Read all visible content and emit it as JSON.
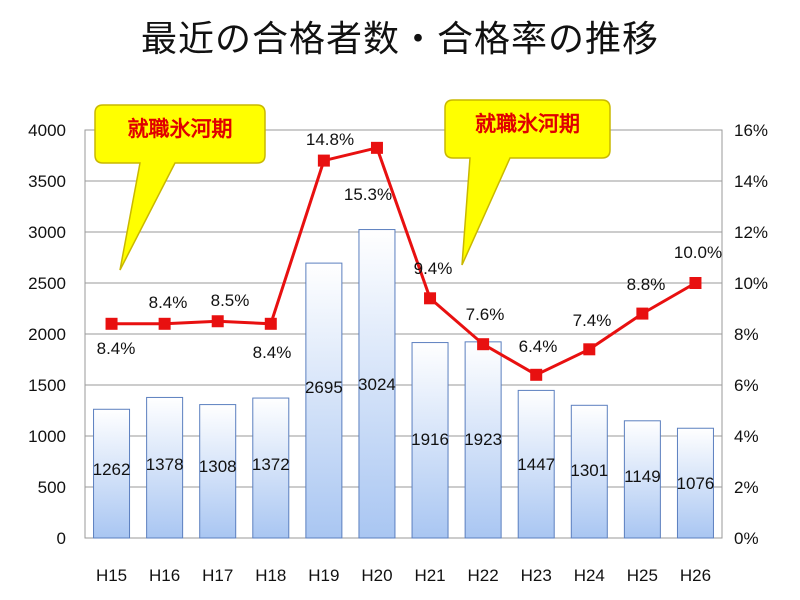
{
  "title": "最近の合格者数・合格率の推移",
  "chart_data": {
    "type": "bar+line",
    "categories": [
      "H15",
      "H16",
      "H17",
      "H18",
      "H19",
      "H20",
      "H21",
      "H22",
      "H23",
      "H24",
      "H25",
      "H26"
    ],
    "bar_series": {
      "values": [
        1262,
        1378,
        1308,
        1372,
        2695,
        3024,
        1916,
        1923,
        1447,
        1301,
        1149,
        1076
      ],
      "color": "#a9c6f2"
    },
    "line_series": {
      "values": [
        8.4,
        8.4,
        8.5,
        8.4,
        14.8,
        15.3,
        9.4,
        7.6,
        6.4,
        7.4,
        8.8,
        10.0
      ],
      "color": "#e81010"
    },
    "rate_labels": [
      "8.4%",
      "8.4%",
      "8.5%",
      "8.4%",
      "14.8%",
      "15.3%",
      "9.4%",
      "7.6%",
      "6.4%",
      "7.4%",
      "8.8%",
      "10.0%"
    ],
    "y_left": {
      "min": 0,
      "max": 4000,
      "ticks": [
        "0",
        "500",
        "1000",
        "1500",
        "2000",
        "2500",
        "3000",
        "3500",
        "4000"
      ]
    },
    "y_right": {
      "min": 0,
      "max": 16,
      "ticks": [
        "0%",
        "2%",
        "4%",
        "6%",
        "8%",
        "10%",
        "12%",
        "14%",
        "16%"
      ]
    },
    "grid": true,
    "annotations": [
      {
        "text": "就職氷河期"
      },
      {
        "text": "就職氷河期"
      }
    ]
  }
}
